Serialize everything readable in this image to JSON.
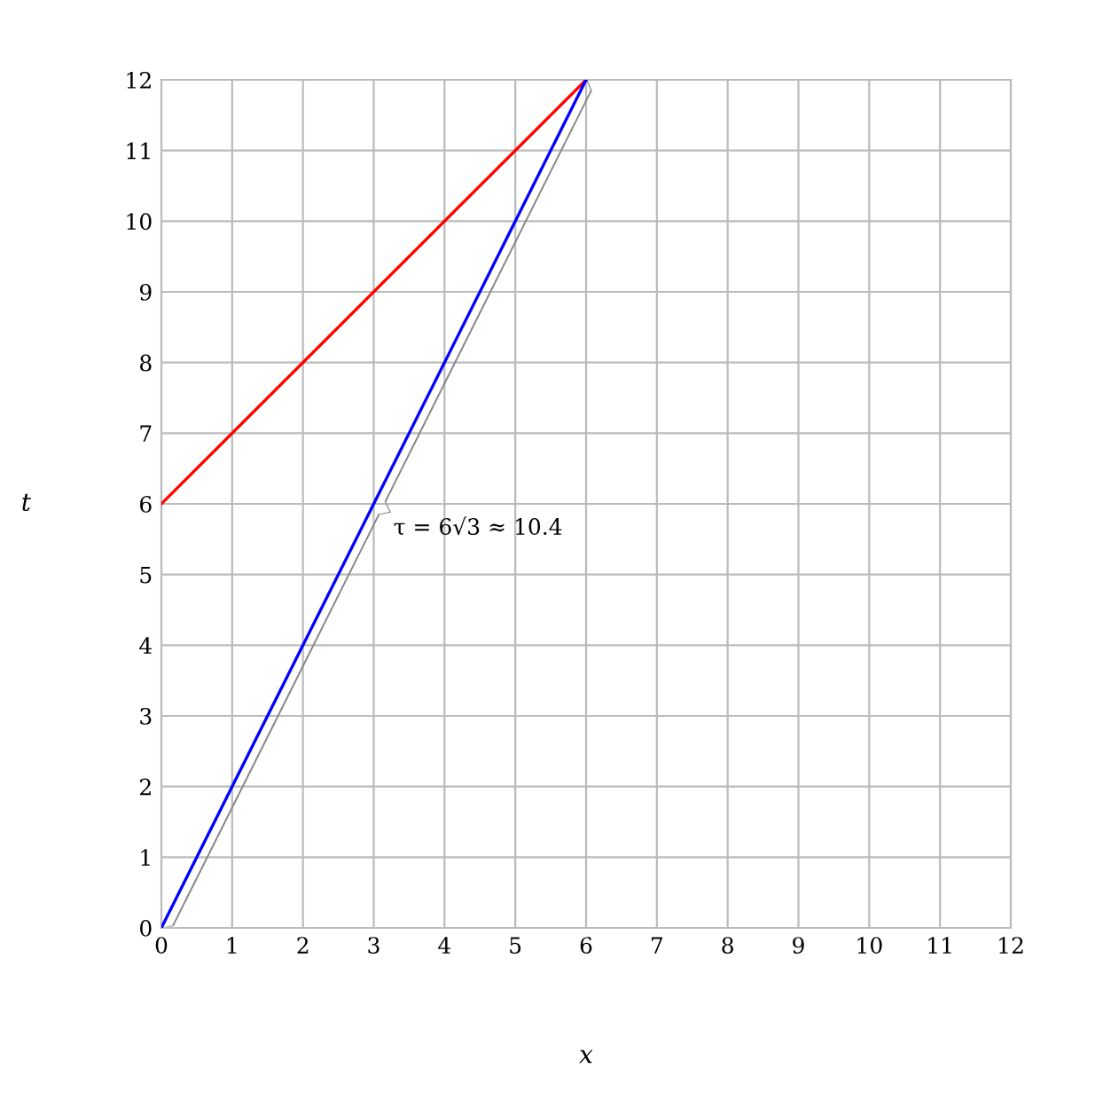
{
  "chart_data": {
    "type": "line",
    "xlabel": "x",
    "ylabel": "t",
    "x": [
      0,
      6
    ],
    "series": [
      {
        "values": [
          6,
          12
        ],
        "color": "#ff0000"
      },
      {
        "values": [
          0,
          12
        ],
        "color": "#0000ff"
      }
    ],
    "annotations": [
      {
        "text": "τ = 6√3 ≈ 10.4",
        "x": 3,
        "y": 6
      }
    ],
    "xlim": [
      0,
      12
    ],
    "ylim": [
      0,
      12
    ],
    "xticks": [
      0,
      1,
      2,
      3,
      4,
      5,
      6,
      7,
      8,
      9,
      10,
      11,
      12
    ],
    "yticks": [
      0,
      1,
      2,
      3,
      4,
      5,
      6,
      7,
      8,
      9,
      10,
      11,
      12
    ],
    "grid": true,
    "marker": "none",
    "line_style": "solid"
  }
}
